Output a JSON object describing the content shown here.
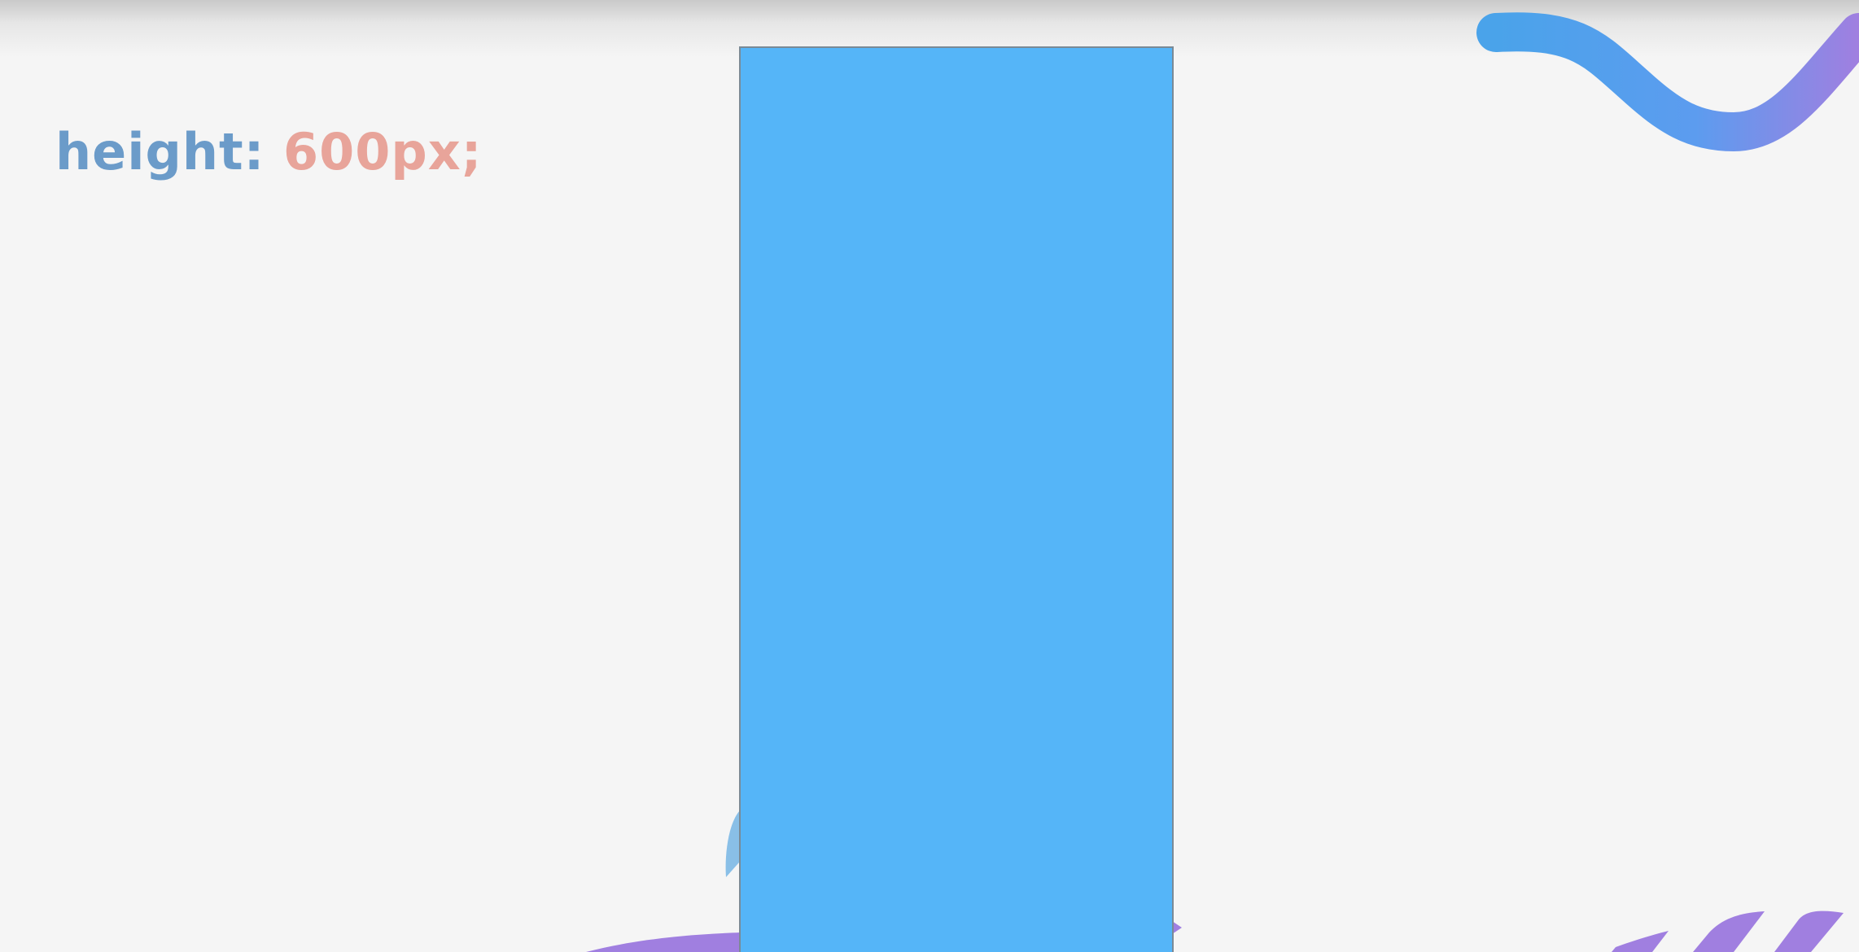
{
  "code": {
    "property": "height:",
    "value": "600px;"
  },
  "colors": {
    "background": "#f5f5f5",
    "property_text": "#6b9bc9",
    "value_text": "#e8a49a",
    "box_fill": "#55b5f8",
    "box_border": "#7a8a96",
    "wave_start": "#4aa3ea",
    "wave_end": "#a07fe0",
    "stripes": "#a07fe0"
  },
  "decorations": [
    "squiggle-wave",
    "purple-arc",
    "purple-stripes",
    "blue-leaf-shape"
  ]
}
